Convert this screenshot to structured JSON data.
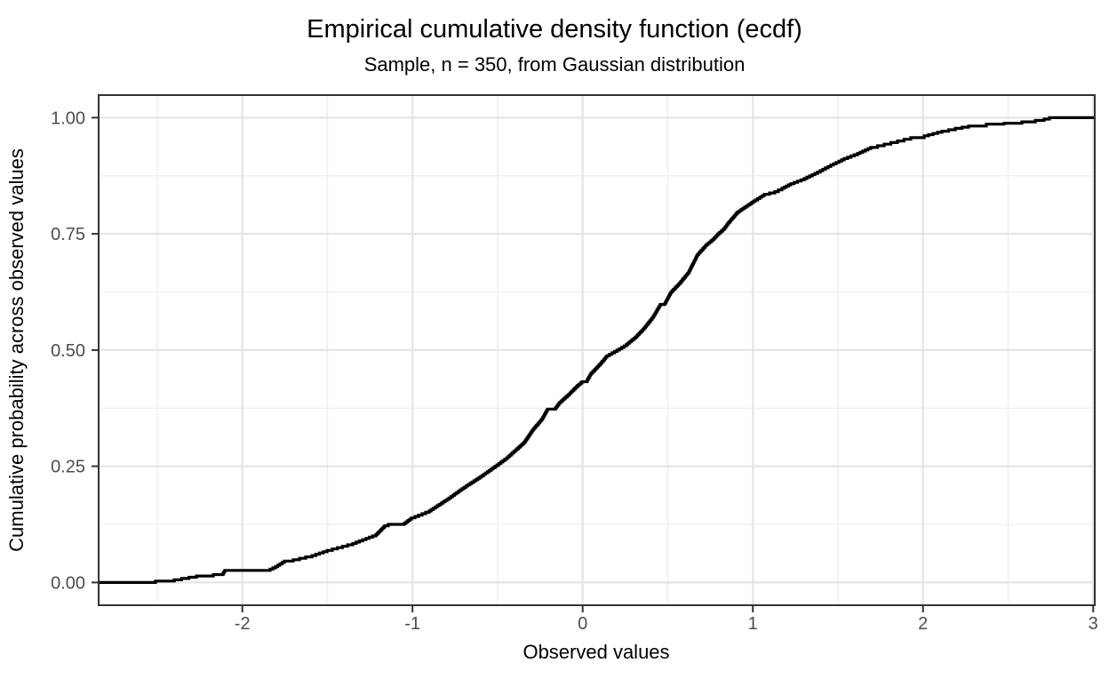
{
  "figure": {
    "title": "Empirical cumulative density function (ecdf)",
    "subtitle": "Sample, n = 350, from Gaussian distribution"
  },
  "style": {
    "background": "#ffffff",
    "curve_color": "#000000",
    "panel_border_color": "#333333",
    "tick_mark_color": "#333333",
    "tick_label_color": "#4d4d4d",
    "grid_major_color": "#e5e5e5",
    "grid_minor_color": "#f0f0f0",
    "title_color": "#000000"
  },
  "chart_data": {
    "type": "line",
    "subtype": "ecdf_step",
    "title": "Empirical cumulative density function (ecdf)",
    "subtitle": "Sample, n = 350, from Gaussian distribution",
    "xlabel": "Observed values",
    "ylabel": "Cumulative probability across observed values",
    "sample_size": 350,
    "distribution": "Gaussian",
    "grid": "major+minor",
    "legend": "none",
    "xlim": [
      -2.845,
      3.009
    ],
    "ylim": [
      -0.049,
      1.049
    ],
    "x_major_ticks": [
      -2,
      -1,
      0,
      1,
      2,
      3
    ],
    "x_tick_labels": [
      "-2",
      "-1",
      "0",
      "1",
      "2",
      "3"
    ],
    "y_major_ticks": [
      0,
      0.25,
      0.5,
      0.75,
      1
    ],
    "y_tick_labels": [
      "0.00",
      "0.25",
      "0.50",
      "0.75",
      "1.00"
    ],
    "x_minor_ticks": [
      -2.5,
      -1.5,
      -0.5,
      0.5,
      1.5,
      2.5
    ],
    "y_minor_ticks": [
      0.125,
      0.375,
      0.625,
      0.875
    ],
    "series": [
      {
        "name": "ecdf",
        "color": "#000000",
        "points": [
          [
            -2.845,
            0.0
          ],
          [
            -2.583,
            0.0
          ],
          [
            -2.51,
            0.003
          ],
          [
            -2.4,
            0.006
          ],
          [
            -2.27,
            0.014
          ],
          [
            -2.171,
            0.017
          ],
          [
            -2.113,
            0.02
          ],
          [
            -2.103,
            0.026
          ],
          [
            -1.852,
            0.026
          ],
          [
            -1.805,
            0.034
          ],
          [
            -1.753,
            0.046
          ],
          [
            -1.701,
            0.049
          ],
          [
            -1.591,
            0.058
          ],
          [
            -1.502,
            0.069
          ],
          [
            -1.351,
            0.084
          ],
          [
            -1.215,
            0.103
          ],
          [
            -1.163,
            0.122
          ],
          [
            -1.142,
            0.125
          ],
          [
            -1.058,
            0.125
          ],
          [
            -1.006,
            0.139
          ],
          [
            -0.902,
            0.154
          ],
          [
            -0.797,
            0.179
          ],
          [
            -0.709,
            0.202
          ],
          [
            -0.604,
            0.227
          ],
          [
            -0.515,
            0.25
          ],
          [
            -0.447,
            0.268
          ],
          [
            -0.395,
            0.285
          ],
          [
            -0.343,
            0.302
          ],
          [
            -0.291,
            0.33
          ],
          [
            -0.239,
            0.352
          ],
          [
            -0.207,
            0.373
          ],
          [
            -0.166,
            0.373
          ],
          [
            -0.134,
            0.388
          ],
          [
            -0.082,
            0.405
          ],
          [
            -0.03,
            0.424
          ],
          [
            -0.004,
            0.432
          ],
          [
            0.022,
            0.433
          ],
          [
            0.049,
            0.45
          ],
          [
            0.101,
            0.47
          ],
          [
            0.143,
            0.488
          ],
          [
            0.216,
            0.503
          ],
          [
            0.257,
            0.512
          ],
          [
            0.31,
            0.528
          ],
          [
            0.362,
            0.548
          ],
          [
            0.414,
            0.572
          ],
          [
            0.456,
            0.598
          ],
          [
            0.482,
            0.6
          ],
          [
            0.519,
            0.625
          ],
          [
            0.571,
            0.645
          ],
          [
            0.623,
            0.668
          ],
          [
            0.675,
            0.706
          ],
          [
            0.727,
            0.727
          ],
          [
            0.764,
            0.738
          ],
          [
            0.795,
            0.75
          ],
          [
            0.832,
            0.762
          ],
          [
            0.858,
            0.775
          ],
          [
            0.91,
            0.797
          ],
          [
            0.962,
            0.81
          ],
          [
            1.015,
            0.823
          ],
          [
            1.067,
            0.835
          ],
          [
            1.129,
            0.841
          ],
          [
            1.171,
            0.848
          ],
          [
            1.223,
            0.858
          ],
          [
            1.302,
            0.869
          ],
          [
            1.38,
            0.883
          ],
          [
            1.458,
            0.898
          ],
          [
            1.537,
            0.912
          ],
          [
            1.615,
            0.923
          ],
          [
            1.693,
            0.936
          ],
          [
            1.772,
            0.943
          ],
          [
            1.85,
            0.95
          ],
          [
            1.928,
            0.957
          ],
          [
            2.007,
            0.961
          ],
          [
            2.111,
            0.971
          ],
          [
            2.19,
            0.977
          ],
          [
            2.268,
            0.982
          ],
          [
            2.372,
            0.986
          ],
          [
            2.477,
            0.988
          ],
          [
            2.581,
            0.991
          ],
          [
            2.66,
            0.994
          ],
          [
            2.712,
            0.997
          ],
          [
            2.743,
            1.0
          ],
          [
            3.009,
            1.0
          ]
        ]
      }
    ]
  }
}
